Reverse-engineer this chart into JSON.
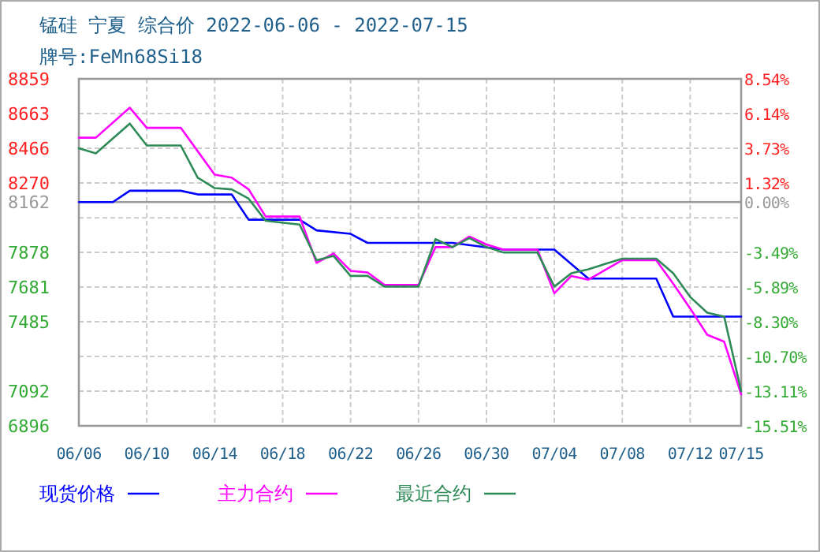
{
  "chart_data": {
    "type": "line",
    "title": "锰硅 宁夏 综合价 2022-06-06 - 2022-07-15",
    "subtitle": "牌号:FeMn68Si18",
    "xlim": [
      "2022-06-06",
      "2022-07-15"
    ],
    "xticks": [
      {
        "value": "2022-06-06",
        "label": "06/06"
      },
      {
        "value": "2022-06-10",
        "label": "06/10"
      },
      {
        "value": "2022-06-14",
        "label": "06/14"
      },
      {
        "value": "2022-06-18",
        "label": "06/18"
      },
      {
        "value": "2022-06-22",
        "label": "06/22"
      },
      {
        "value": "2022-06-26",
        "label": "06/26"
      },
      {
        "value": "2022-06-30",
        "label": "06/30"
      },
      {
        "value": "2022-07-04",
        "label": "07/04"
      },
      {
        "value": "2022-07-08",
        "label": "07/08"
      },
      {
        "value": "2022-07-12",
        "label": "07/12"
      },
      {
        "value": "2022-07-15",
        "label": "07/15"
      }
    ],
    "ylim": [
      6896,
      8859
    ],
    "yticks": [
      8859,
      8663,
      8466,
      8270,
      {
        "value": 8073,
        "label": null
      },
      7878,
      7681,
      7485,
      {
        "value": 7289,
        "label": null
      },
      7092,
      6896
    ],
    "y2lim": [
      -15.51,
      8.54
    ],
    "y2ticks": [
      {
        "value": 8.54,
        "label": "8.54%"
      },
      {
        "value": 6.14,
        "label": "6.14%"
      },
      {
        "value": 3.73,
        "label": "3.73%"
      },
      {
        "value": 1.32,
        "label": "1.32%"
      },
      {
        "value": 0,
        "label": "0.00%"
      },
      {
        "value": -3.49,
        "label": "-3.49%"
      },
      {
        "value": -5.89,
        "label": "-5.89%"
      },
      {
        "value": -8.3,
        "label": "-8.30%"
      },
      {
        "value": -10.7,
        "label": "-10.70%"
      },
      {
        "value": -13.11,
        "label": "-13.11%"
      },
      {
        "value": -15.51,
        "label": "-15.51%"
      }
    ],
    "ref_lines": [
      {
        "axis": "y",
        "value": 8162,
        "label": "8162",
        "color": "#999999"
      }
    ],
    "grid": true,
    "legend": "bottom",
    "line_style": "solid",
    "series": [
      {
        "name": "现货价格",
        "color": "#0000ff",
        "x": [
          "2022-06-06",
          "2022-06-08",
          "2022-06-09",
          "2022-06-12",
          "2022-06-13",
          "2022-06-15",
          "2022-06-16",
          "2022-06-19",
          "2022-06-20",
          "2022-06-22",
          "2022-06-23",
          "2022-06-28",
          "2022-07-01",
          "2022-07-04",
          "2022-07-06",
          "2022-07-10",
          "2022-07-11",
          "2022-07-15"
        ],
        "values": [
          8162,
          8162,
          8226,
          8226,
          8205,
          8205,
          8062,
          8062,
          8002,
          7982,
          7931,
          7931,
          7893,
          7893,
          7729,
          7729,
          7514,
          7514
        ]
      },
      {
        "name": "主力合约",
        "color": "#ff00ff",
        "x": [
          "2022-06-06",
          "2022-06-07",
          "2022-06-09",
          "2022-06-10",
          "2022-06-12",
          "2022-06-14",
          "2022-06-15",
          "2022-06-16",
          "2022-06-17",
          "2022-06-19",
          "2022-06-20",
          "2022-06-21",
          "2022-06-22",
          "2022-06-23",
          "2022-06-24",
          "2022-06-26",
          "2022-06-27",
          "2022-06-28",
          "2022-06-29",
          "2022-06-30",
          "2022-07-01",
          "2022-07-03",
          "2022-07-04",
          "2022-07-05",
          "2022-07-06",
          "2022-07-08",
          "2022-07-10",
          "2022-07-11",
          "2022-07-12",
          "2022-07-13",
          "2022-07-14",
          "2022-07-15"
        ],
        "values": [
          8526,
          8526,
          8696,
          8582,
          8582,
          8317,
          8300,
          8234,
          8080,
          8080,
          7818,
          7871,
          7773,
          7764,
          7693,
          7693,
          7907,
          7907,
          7967,
          7922,
          7893,
          7893,
          7646,
          7744,
          7723,
          7833,
          7833,
          7700,
          7560,
          7411,
          7372,
          7074
        ]
      },
      {
        "name": "最近合约",
        "color": "#2e8b57",
        "x": [
          "2022-06-06",
          "2022-06-07",
          "2022-06-09",
          "2022-06-10",
          "2022-06-12",
          "2022-06-13",
          "2022-06-14",
          "2022-06-15",
          "2022-06-16",
          "2022-06-17",
          "2022-06-19",
          "2022-06-20",
          "2022-06-21",
          "2022-06-22",
          "2022-06-23",
          "2022-06-24",
          "2022-06-26",
          "2022-06-27",
          "2022-06-28",
          "2022-06-29",
          "2022-06-30",
          "2022-07-01",
          "2022-07-03",
          "2022-07-04",
          "2022-07-05",
          "2022-07-06",
          "2022-07-08",
          "2022-07-10",
          "2022-07-11",
          "2022-07-12",
          "2022-07-13",
          "2022-07-14",
          "2022-07-15"
        ],
        "values": [
          8466,
          8437,
          8606,
          8482,
          8482,
          8300,
          8241,
          8234,
          8181,
          8056,
          8035,
          7833,
          7857,
          7744,
          7744,
          7684,
          7684,
          7952,
          7907,
          7958,
          7907,
          7877,
          7877,
          7684,
          7759,
          7782,
          7842,
          7842,
          7759,
          7625,
          7536,
          7514,
          7092
        ]
      }
    ]
  }
}
